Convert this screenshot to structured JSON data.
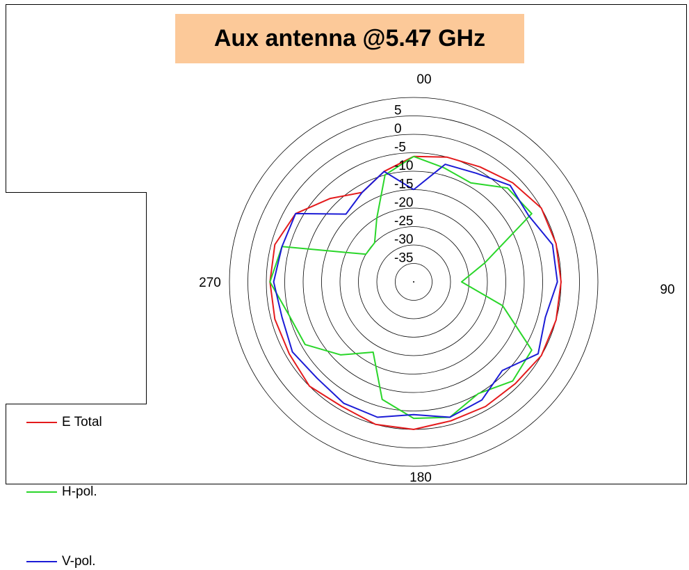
{
  "chart_data": {
    "type": "polar-line",
    "title": "Aux antenna @5.47 GHz",
    "angle_labels": [
      {
        "angle": 0,
        "text": "00"
      },
      {
        "angle": 90,
        "text": "90"
      },
      {
        "angle": 180,
        "text": "180"
      },
      {
        "angle": 270,
        "text": "270"
      }
    ],
    "radial_ticks": [
      5,
      0,
      -5,
      -10,
      -15,
      -20,
      -25,
      -30,
      -35
    ],
    "rlim": [
      -40,
      10
    ],
    "legend_position": "left",
    "series": [
      {
        "name": "E Total",
        "color": "#e41a1c",
        "angles": [
          0,
          15,
          30,
          45,
          60,
          75,
          90,
          105,
          120,
          135,
          150,
          165,
          180,
          195,
          210,
          225,
          240,
          255,
          270,
          285,
          300,
          315,
          330,
          345
        ],
        "values": [
          -6,
          -5,
          -4,
          -2,
          0,
          0,
          0,
          0,
          0,
          -1,
          -1,
          -1,
          0,
          0,
          -1,
          0,
          -1,
          -1,
          -1,
          -1,
          -3,
          -8,
          -12,
          -9
        ]
      },
      {
        "name": "H-pol.",
        "color": "#29d629",
        "angles": [
          0,
          15,
          30,
          45,
          60,
          75,
          90,
          105,
          120,
          135,
          150,
          165,
          180,
          195,
          210,
          225,
          240,
          255,
          270,
          285,
          300,
          315,
          330,
          345
        ],
        "values": [
          -6,
          -8,
          -9,
          -4,
          -3,
          -20,
          -27,
          -15,
          -3,
          -2,
          -5,
          -2,
          -3,
          -7,
          -18,
          -12,
          -6,
          -5,
          -1,
          -3,
          -25,
          -25,
          -20,
          -10
        ]
      },
      {
        "name": "V-pol.",
        "color": "#1b1bd6",
        "angles": [
          0,
          15,
          30,
          45,
          60,
          75,
          90,
          105,
          120,
          135,
          150,
          165,
          180,
          195,
          210,
          225,
          240,
          255,
          270,
          285,
          300,
          315,
          330,
          345
        ],
        "values": [
          -15,
          -7,
          -6,
          -3,
          -4,
          -1,
          -1,
          -3,
          -1,
          -6,
          -3,
          -2,
          -4,
          -2,
          -2,
          -3,
          -2,
          -3,
          -2,
          -3,
          -3,
          -14,
          -12,
          -9
        ]
      }
    ]
  }
}
